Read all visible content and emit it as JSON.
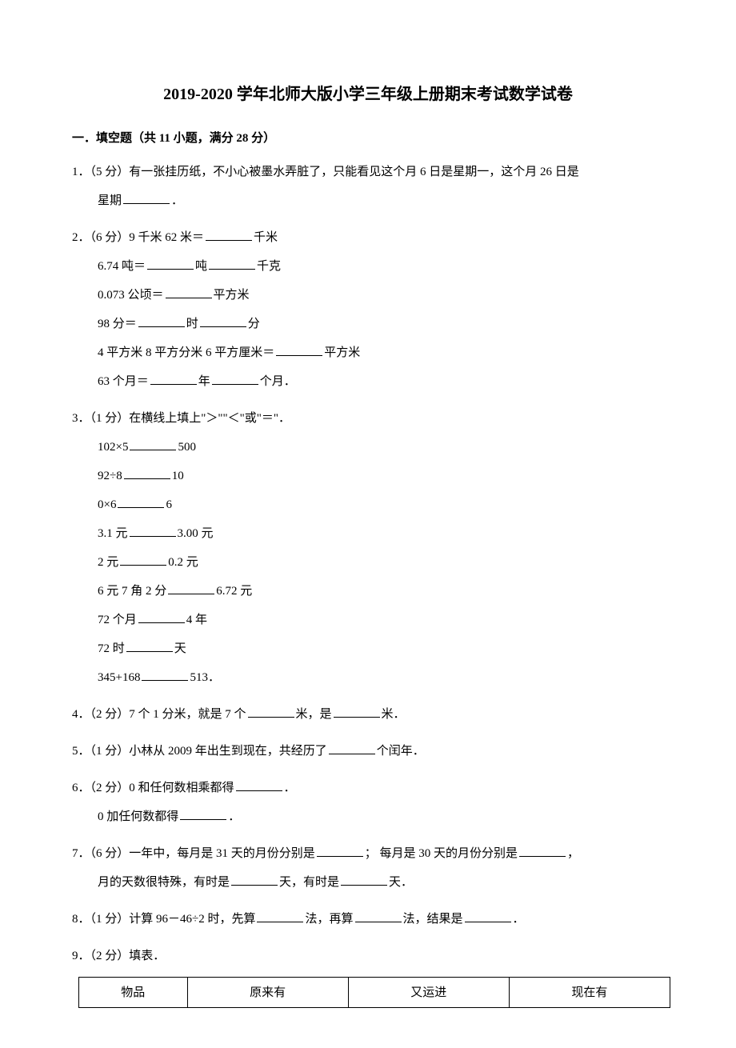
{
  "title": "2019-2020 学年北师大版小学三年级上册期末考试数学试卷",
  "section": "一．填空题（共 11 小题，满分 28 分）",
  "q1": {
    "prefix": "1．（5 分）有一张挂历纸，不小心被墨水弄脏了，只能看见这个月 6 日是星期一，这个月 26 日是",
    "line2a": "星期",
    "line2b": "．"
  },
  "q2": {
    "prefix": "2．（6 分）9 千米 62 米＝",
    "suffix": "千米",
    "l2a": "6.74 吨＝",
    "l2b": "吨",
    "l2c": "千克",
    "l3a": "0.073 公顷＝",
    "l3b": "平方米",
    "l4a": "98 分＝",
    "l4b": "时",
    "l4c": "分",
    "l5a": "4 平方米 8 平方分米 6 平方厘米＝",
    "l5b": "平方米",
    "l6a": "63 个月＝",
    "l6b": "年",
    "l6c": "个月．"
  },
  "q3": {
    "prefix": "3．（1 分）在横线上填上\"＞\"\"＜\"或\"＝\"．",
    "r1a": "102×5",
    "r1b": "500",
    "r2a": "92÷8",
    "r2b": "10",
    "r3a": "0×6",
    "r3b": "6",
    "r4a": "3.1 元",
    "r4b": "3.00 元",
    "r5a": "2 元",
    "r5b": "0.2 元",
    "r6a": "6 元 7 角 2 分",
    "r6b": "6.72 元",
    "r7a": "72 个月",
    "r7b": "4 年",
    "r8a": "72 时",
    "r8b": "天",
    "r9a": "345+168",
    "r9b": "513．"
  },
  "q4": {
    "a": "4．（2 分）7 个 1 分米，就是 7 个",
    "b": "米，是",
    "c": "米．"
  },
  "q5": {
    "a": "5．（1 分）小林从 2009 年出生到现在，共经历了",
    "b": "个闰年．"
  },
  "q6": {
    "a": "6．（2 分）0 和任何数相乘都得",
    "b": "．",
    "c": "0 加任何数都得",
    "d": "．"
  },
  "q7": {
    "a": "7．（6 分）一年中，每月是 31 天的月份分别是",
    "b": "； 每月是 30 天的月份分别是",
    "c": "，",
    "d": "月的天数很特殊，有时是",
    "e": "天，有时是",
    "f": "天．"
  },
  "q8": {
    "a": "8．（1 分）计算 96－46÷2 时，先算",
    "b": "法，再算",
    "c": "法，结果是",
    "d": "．"
  },
  "q9": {
    "a": "9．（2 分）填表．"
  },
  "table": {
    "h1": "物品",
    "h2": "原来有",
    "h3": "又运进",
    "h4": "现在有"
  }
}
